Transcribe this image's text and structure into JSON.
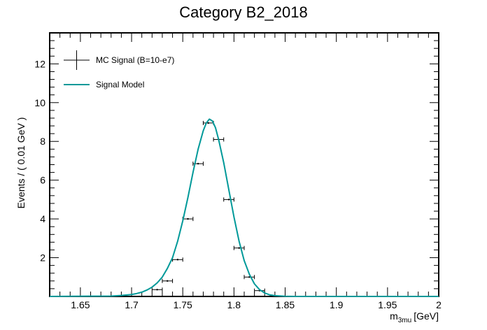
{
  "chart_data": {
    "type": "line",
    "title": "Category B2_2018",
    "xlabel": "m",
    "xlabel_sub": "3mu",
    "xlabel_unit": "[GeV]",
    "ylabel": "Events / ( 0.01 GeV )",
    "xlim": [
      1.62,
      2.0
    ],
    "ylim": [
      0,
      13.6
    ],
    "x_ticks": [
      1.65,
      1.7,
      1.75,
      1.8,
      1.85,
      1.9,
      1.95,
      2.0
    ],
    "x_tick_labels": [
      "1.65",
      "1.7",
      "1.75",
      "1.8",
      "1.85",
      "1.9",
      "1.95",
      "2"
    ],
    "y_ticks": [
      2,
      4,
      6,
      8,
      10,
      12
    ],
    "y_tick_labels": [
      "2",
      "4",
      "6",
      "8",
      "10",
      "12"
    ],
    "legend_position": "top-left",
    "grid": false,
    "series": [
      {
        "name": "MC Signal (B=10-e7)",
        "kind": "points",
        "color": "#000000",
        "x": [
          1.725,
          1.735,
          1.745,
          1.755,
          1.765,
          1.775,
          1.785,
          1.795,
          1.805,
          1.815,
          1.825
        ],
        "y": [
          0.35,
          0.8,
          1.9,
          4.0,
          6.85,
          8.95,
          8.1,
          5.0,
          2.5,
          1.0,
          0.3
        ],
        "x_err": 0.005
      },
      {
        "name": "Signal Model",
        "kind": "line",
        "color": "#009999",
        "x": [
          1.62,
          1.68,
          1.69,
          1.7,
          1.705,
          1.71,
          1.715,
          1.72,
          1.725,
          1.73,
          1.735,
          1.74,
          1.745,
          1.75,
          1.755,
          1.76,
          1.765,
          1.77,
          1.773,
          1.776,
          1.779,
          1.782,
          1.785,
          1.79,
          1.795,
          1.8,
          1.805,
          1.81,
          1.815,
          1.82,
          1.825,
          1.83,
          1.835,
          1.84,
          1.85,
          1.86,
          1.87,
          2.0
        ],
        "y": [
          0.0,
          0.02,
          0.05,
          0.1,
          0.15,
          0.22,
          0.33,
          0.48,
          0.7,
          1.0,
          1.45,
          2.0,
          2.85,
          3.9,
          5.1,
          6.4,
          7.6,
          8.55,
          8.95,
          9.15,
          9.05,
          8.7,
          8.1,
          6.9,
          5.5,
          4.1,
          2.85,
          1.85,
          1.15,
          0.65,
          0.35,
          0.18,
          0.08,
          0.04,
          0.01,
          0.0,
          0.0,
          0.0
        ]
      }
    ]
  }
}
